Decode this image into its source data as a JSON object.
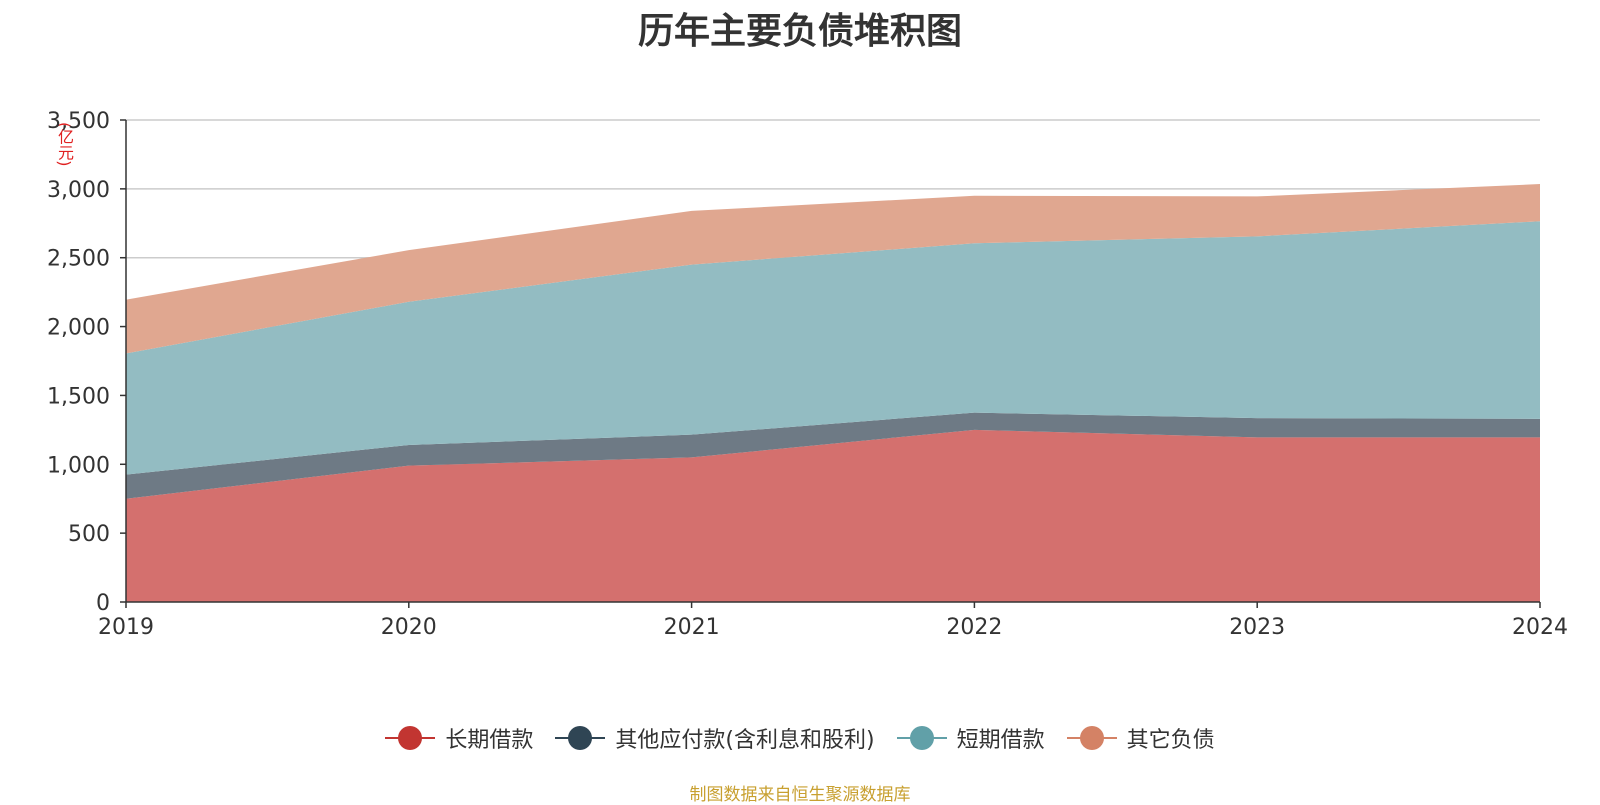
{
  "chart_data": {
    "type": "area",
    "stacked": true,
    "title": "历年主要负债堆积图",
    "unit": "(亿元)",
    "x": [
      "2019",
      "2020",
      "2021",
      "2022",
      "2023",
      "2024"
    ],
    "ylim": [
      0,
      3500
    ],
    "yticks": [
      "0",
      "500",
      "1,000",
      "1,500",
      "2,000",
      "2,500",
      "3,000",
      "3,500"
    ],
    "grid": true,
    "legend_position": "bottom",
    "series": [
      {
        "name": "长期借款",
        "values": [
          750,
          990,
          1050,
          1250,
          1195,
          1195
        ],
        "color": "#c23531",
        "fill": "#d4706e"
      },
      {
        "name": "其他应付款(含利息和股利)",
        "values": [
          175,
          150,
          165,
          125,
          140,
          135
        ],
        "color": "#2f4554",
        "fill": "#6e7a85"
      },
      {
        "name": "短期借款",
        "values": [
          880,
          1040,
          1235,
          1230,
          1320,
          1435
        ],
        "color": "#61a0a8",
        "fill": "#93bcc2"
      },
      {
        "name": "其它负债",
        "values": [
          390,
          375,
          390,
          345,
          290,
          270
        ],
        "color": "#d48265",
        "fill": "#e0a790"
      }
    ],
    "source": "制图数据来自恒生聚源数据库"
  }
}
